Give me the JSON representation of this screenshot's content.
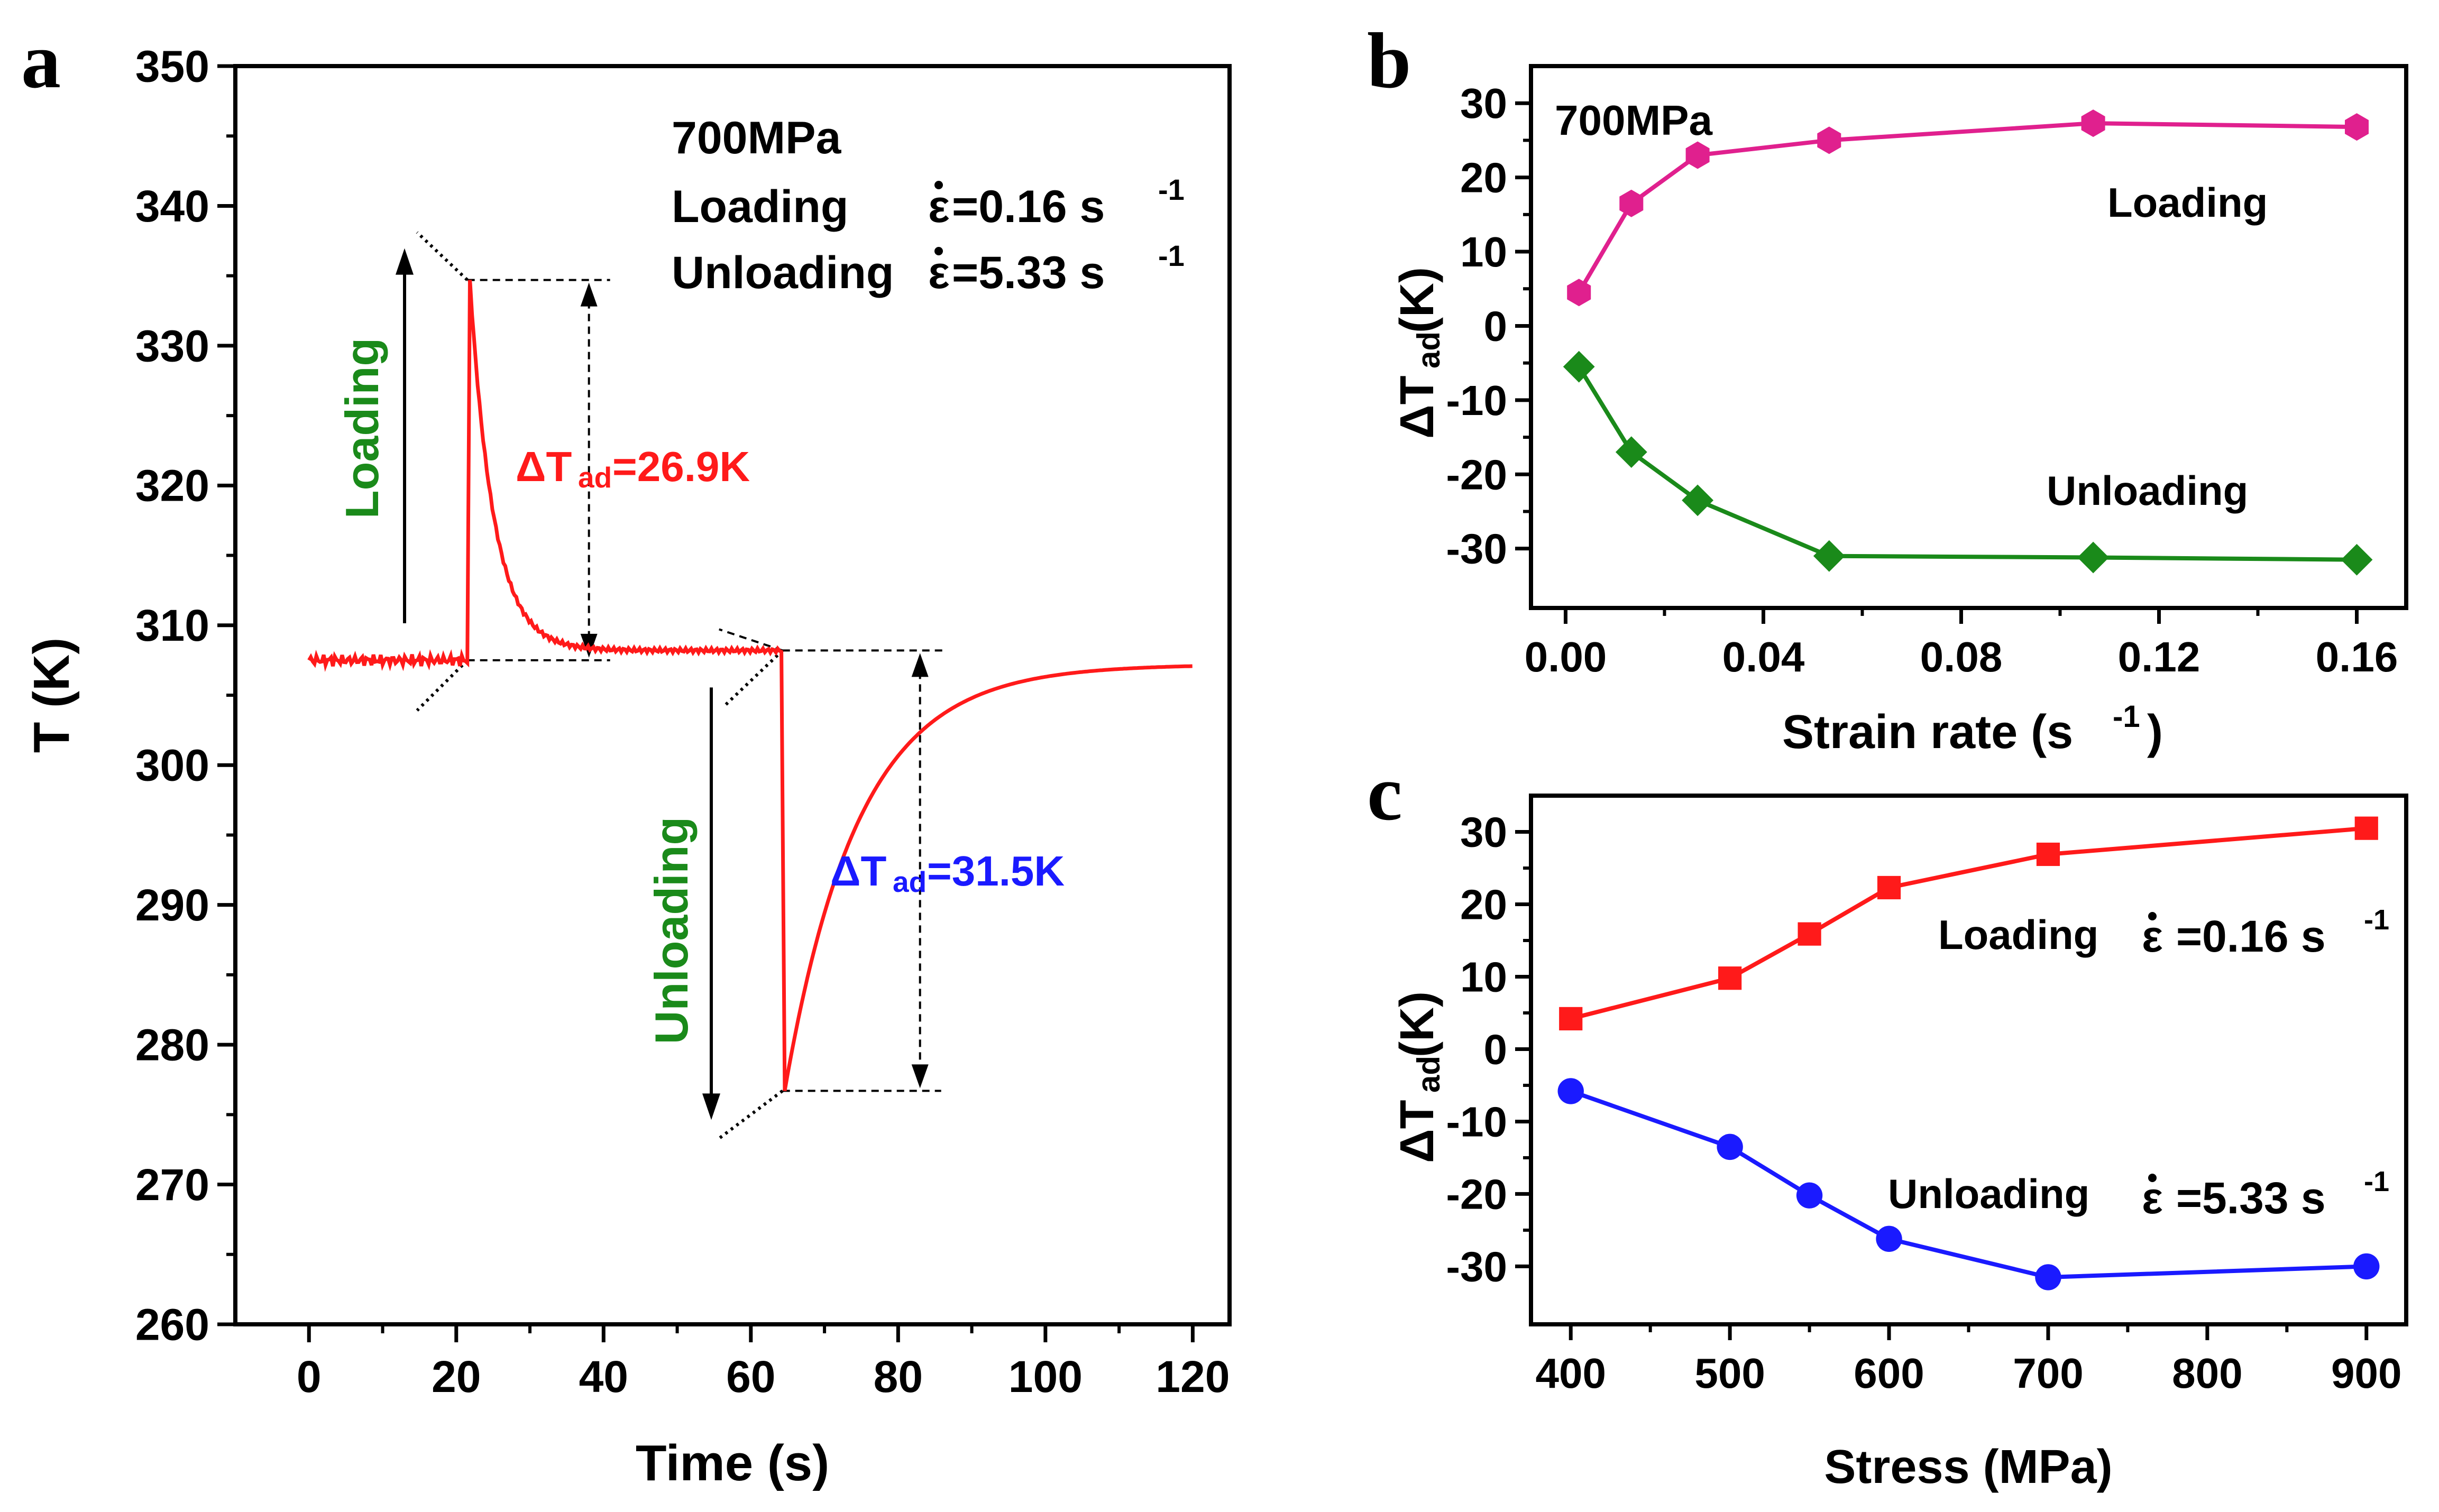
{
  "chart_data": [
    {
      "panel": "a",
      "type": "line",
      "xlabel": "Time (s)",
      "ylabel": "T (K)",
      "xlim": [
        -10,
        125
      ],
      "ylim": [
        260,
        350
      ],
      "xticks": [
        0,
        20,
        40,
        60,
        80,
        100,
        120
      ],
      "yticks": [
        260,
        270,
        280,
        290,
        300,
        310,
        320,
        330,
        340,
        350
      ],
      "series_color": "#ff1a1a",
      "baseline_before": 307.5,
      "loading_time": 21.5,
      "loading_peak": 334.7,
      "plateau": 308.2,
      "unloading_time": 64.3,
      "unloading_min": 276.7,
      "final_value": 307.2,
      "info": {
        "stress": "700MPa",
        "loading_label": "Loading",
        "loading_rate": "=0.16 s",
        "unloading_label": "Unloading",
        "unloading_rate": "=5.33 s",
        "rate_exp": "-1",
        "eps": "ε"
      },
      "annotations": {
        "loading": {
          "arrow_label": "Loading",
          "prefix": "ΔT",
          "sub": "ad",
          "value": "=26.9K",
          "label_color": "#1a8a1a",
          "value_color": "#ff1a1a"
        },
        "unloading": {
          "arrow_label": "Unloading",
          "prefix": "ΔT",
          "sub": "ad",
          "value": "=31.5K",
          "label_color": "#1a8a1a",
          "value_color": "#1a1aff"
        }
      }
    },
    {
      "panel": "b",
      "type": "line",
      "title_note": "700MPa",
      "xlabel": "Strain rate (s",
      "xlabel_sup": "-1",
      "xlabel_close": ")",
      "ylabel": "ΔT",
      "ylabel_sub": "ad",
      "ylabel_unit": " (K)",
      "xlim": [
        -0.007,
        0.17
      ],
      "ylim": [
        -38,
        35
      ],
      "xticks": [
        0.0,
        0.04,
        0.08,
        0.12,
        0.16
      ],
      "xtick_labels": [
        "0.00",
        "0.04",
        "0.08",
        "0.12",
        "0.16"
      ],
      "yticks": [
        -30,
        -20,
        -10,
        0,
        10,
        20,
        30
      ],
      "series": [
        {
          "name": "Loading",
          "color": "#e0208e",
          "marker": "hexagon",
          "x": [
            0.0027,
            0.0133,
            0.0267,
            0.0533,
            0.1067,
            0.16
          ],
          "values": [
            4.5,
            16.5,
            23.0,
            25.0,
            27.3,
            26.8
          ]
        },
        {
          "name": "Unloading",
          "color": "#1a8a1a",
          "marker": "diamond",
          "x": [
            0.0027,
            0.0133,
            0.0267,
            0.0533,
            0.1067,
            0.16
          ],
          "values": [
            -5.5,
            -17.0,
            -23.5,
            -31.0,
            -31.2,
            -31.5
          ]
        }
      ]
    },
    {
      "panel": "c",
      "type": "line",
      "xlabel": "Stress (MPa)",
      "ylabel": "ΔT",
      "ylabel_sub": "ad",
      "ylabel_unit": " (K)",
      "xlim": [
        375,
        925
      ],
      "ylim": [
        -38,
        35
      ],
      "xticks": [
        400,
        500,
        600,
        700,
        800,
        900
      ],
      "yticks": [
        -30,
        -20,
        -10,
        0,
        10,
        20,
        30
      ],
      "series": [
        {
          "name": "Loading",
          "rate": "=0.16 s",
          "color": "#ff1a1a",
          "marker": "square",
          "x": [
            400,
            500,
            550,
            600,
            700,
            900
          ],
          "values": [
            4.2,
            9.8,
            15.9,
            22.3,
            26.9,
            30.5
          ]
        },
        {
          "name": "Unloading",
          "rate": "=5.33 s",
          "color": "#1a1aff",
          "marker": "circle",
          "x": [
            400,
            500,
            550,
            600,
            700,
            900
          ],
          "values": [
            -5.8,
            -13.5,
            -20.2,
            -26.2,
            -31.5,
            -30.0
          ]
        }
      ],
      "rate_exp": "-1",
      "eps": "ε"
    }
  ],
  "panel_labels": [
    "a",
    "b",
    "c"
  ]
}
